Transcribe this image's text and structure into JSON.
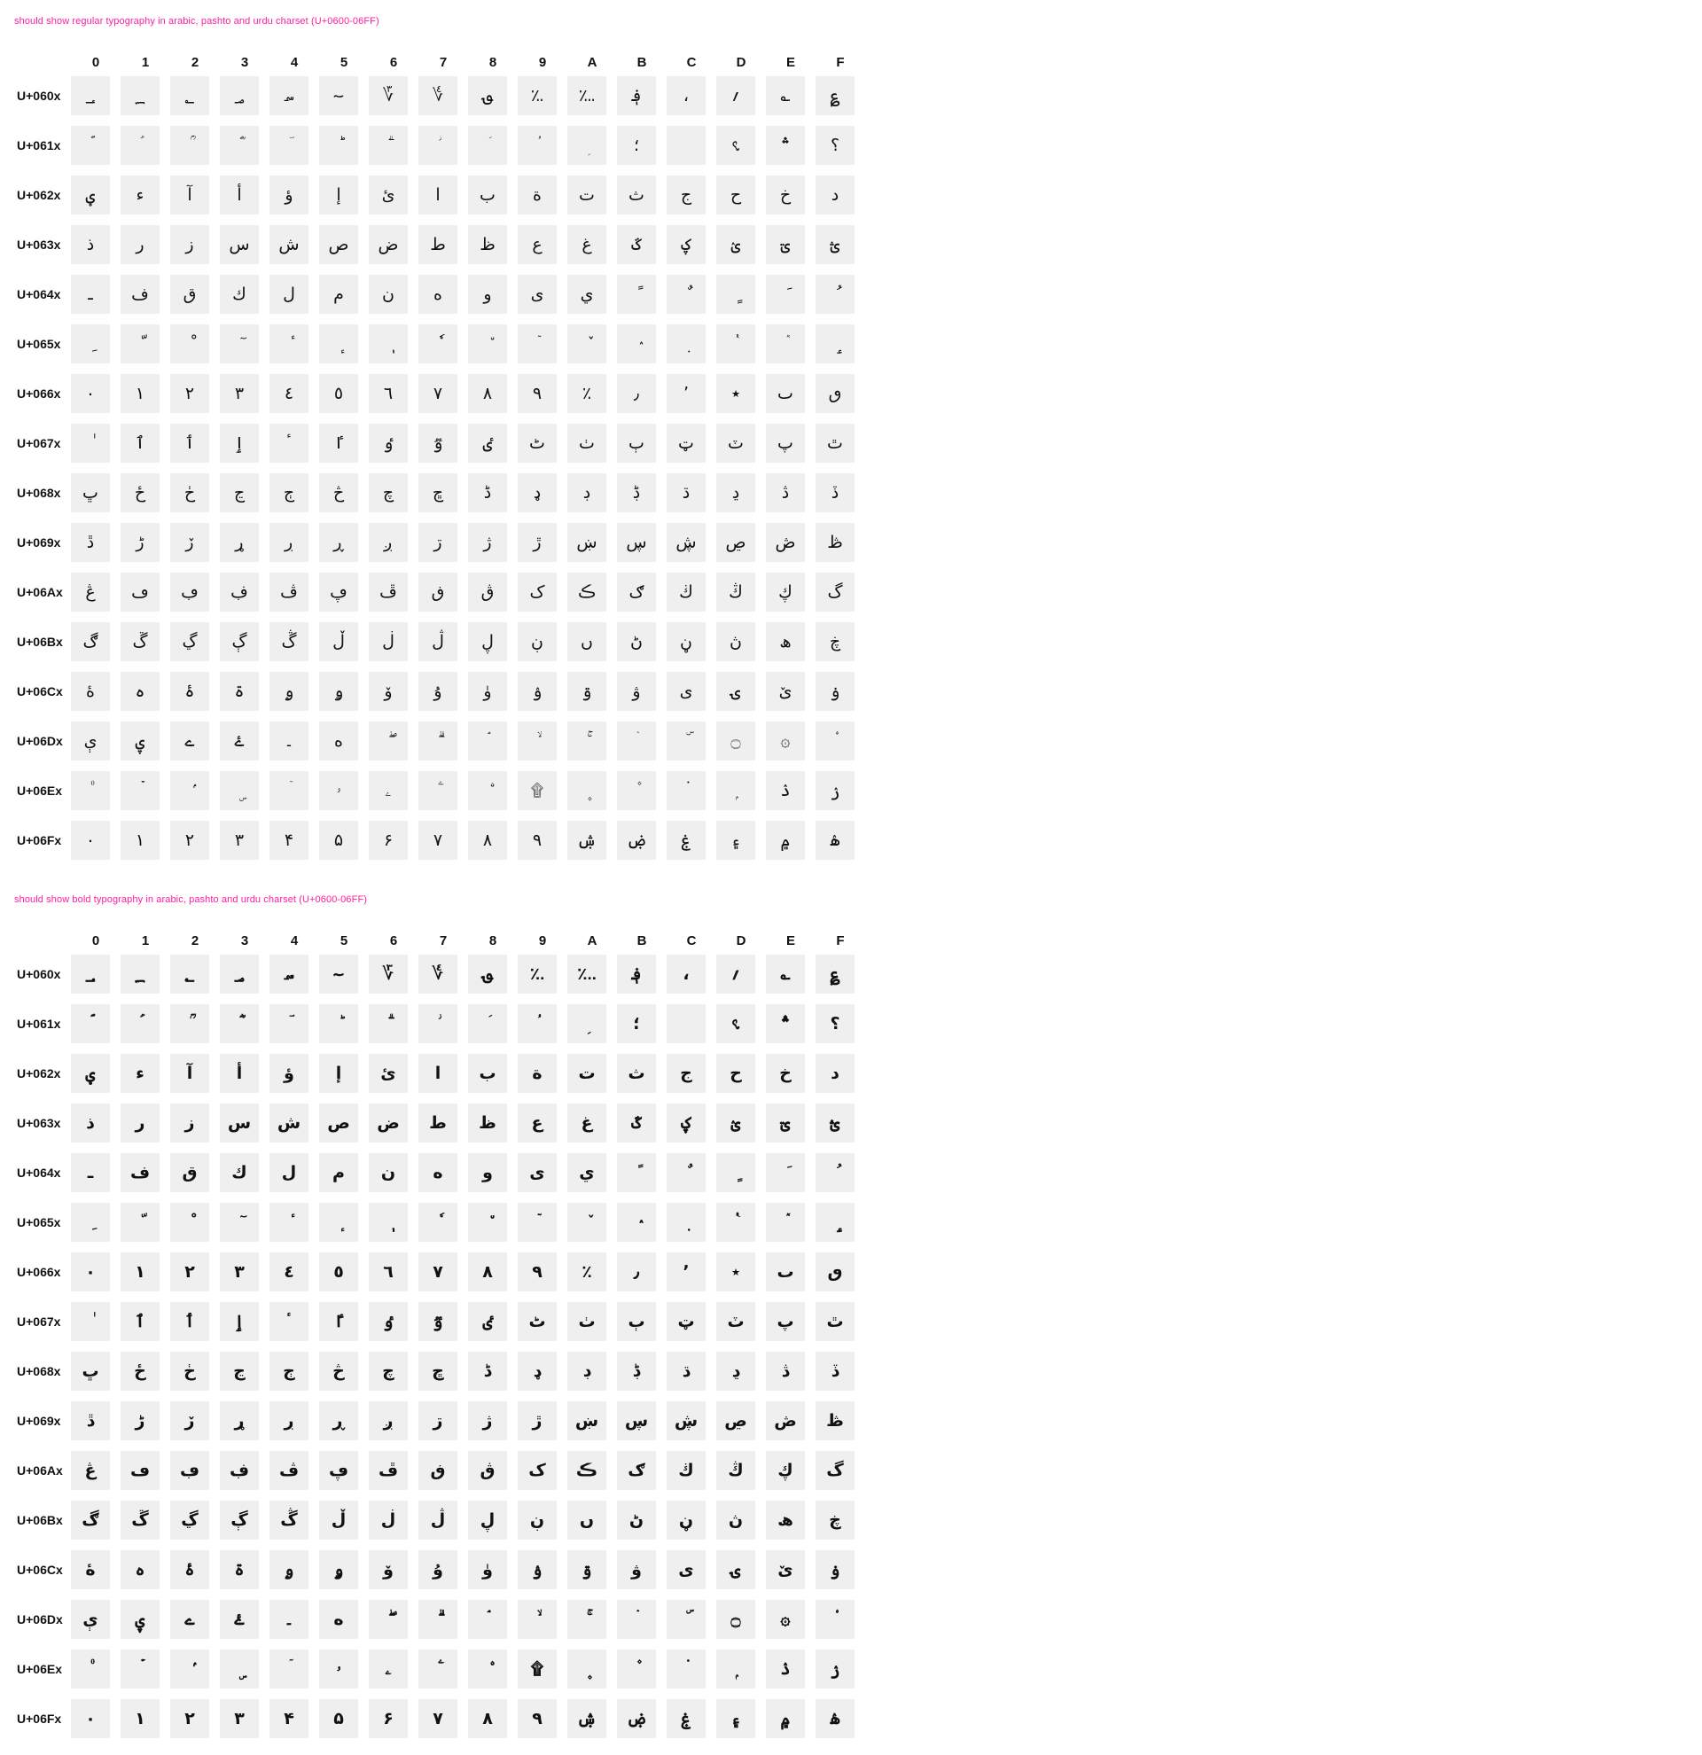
{
  "colors": {
    "title": "#ff1fa0",
    "cell_bg": "#efefef",
    "text": "#111111",
    "background": "#ffffff"
  },
  "column_headers": [
    "0",
    "1",
    "2",
    "3",
    "4",
    "5",
    "6",
    "7",
    "8",
    "9",
    "A",
    "B",
    "C",
    "D",
    "E",
    "F"
  ],
  "sections": [
    {
      "title": "should show regular typography in arabic, pashto and urdu charset (U+0600-06FF)",
      "weight": "regular",
      "rows": [
        {
          "label": "U+060x",
          "chars": [
            "؀",
            "؁",
            "؂",
            "؃",
            "؄",
            "؅",
            "؆",
            "؇",
            "؈",
            "؉",
            "؊",
            "؋",
            "،",
            "؍",
            "؎",
            "؏"
          ]
        },
        {
          "label": "U+061x",
          "chars": [
            "ؐ",
            "ؑ",
            "ؒ",
            "ؓ",
            "ؔ",
            "ؕ",
            "ؖ",
            "ؗ",
            "ؘ",
            "ؙ",
            "ؚ",
            "؛",
            "؜",
            "؝",
            "؞",
            "؟"
          ]
        },
        {
          "label": "U+062x",
          "chars": [
            "ؠ",
            "ء",
            "آ",
            "أ",
            "ؤ",
            "إ",
            "ئ",
            "ا",
            "ب",
            "ة",
            "ت",
            "ث",
            "ج",
            "ح",
            "خ",
            "د"
          ]
        },
        {
          "label": "U+063x",
          "chars": [
            "ذ",
            "ر",
            "ز",
            "س",
            "ش",
            "ص",
            "ض",
            "ط",
            "ظ",
            "ع",
            "غ",
            "ػ",
            "ؼ",
            "ؽ",
            "ؾ",
            "ؿ"
          ]
        },
        {
          "label": "U+064x",
          "chars": [
            "ـ",
            "ف",
            "ق",
            "ك",
            "ل",
            "م",
            "ن",
            "ه",
            "و",
            "ى",
            "ي",
            "ً",
            "ٌ",
            "ٍ",
            "َ",
            "ُ"
          ]
        },
        {
          "label": "U+065x",
          "chars": [
            "ِ",
            "ّ",
            "ْ",
            "ٓ",
            "ٔ",
            "ٕ",
            "ٖ",
            "ٗ",
            "٘",
            "ٙ",
            "ٚ",
            "ٛ",
            "ٜ",
            "ٝ",
            "ٞ",
            "ٟ"
          ]
        },
        {
          "label": "U+066x",
          "chars": [
            "٠",
            "١",
            "٢",
            "٣",
            "٤",
            "٥",
            "٦",
            "٧",
            "٨",
            "٩",
            "٪",
            "٫",
            "٬",
            "٭",
            "ٮ",
            "ٯ"
          ]
        },
        {
          "label": "U+067x",
          "chars": [
            "ٰ",
            "ٱ",
            "ٲ",
            "ٳ",
            "ٴ",
            "ٵ",
            "ٶ",
            "ٷ",
            "ٸ",
            "ٹ",
            "ٺ",
            "ٻ",
            "ټ",
            "ٽ",
            "پ",
            "ٿ"
          ]
        },
        {
          "label": "U+068x",
          "chars": [
            "ڀ",
            "ځ",
            "ڂ",
            "ڃ",
            "ڄ",
            "څ",
            "چ",
            "ڇ",
            "ڈ",
            "ډ",
            "ڊ",
            "ڋ",
            "ڌ",
            "ڍ",
            "ڎ",
            "ڏ"
          ]
        },
        {
          "label": "U+069x",
          "chars": [
            "ڐ",
            "ڑ",
            "ڒ",
            "ړ",
            "ڔ",
            "ڕ",
            "ږ",
            "ڗ",
            "ژ",
            "ڙ",
            "ښ",
            "ڛ",
            "ڜ",
            "ڝ",
            "ڞ",
            "ڟ"
          ]
        },
        {
          "label": "U+06Ax",
          "chars": [
            "ڠ",
            "ڡ",
            "ڢ",
            "ڣ",
            "ڤ",
            "ڥ",
            "ڦ",
            "ڧ",
            "ڨ",
            "ک",
            "ڪ",
            "ګ",
            "ڬ",
            "ڭ",
            "ڮ",
            "گ"
          ]
        },
        {
          "label": "U+06Bx",
          "chars": [
            "ڰ",
            "ڱ",
            "ڲ",
            "ڳ",
            "ڴ",
            "ڵ",
            "ڶ",
            "ڷ",
            "ڸ",
            "ڹ",
            "ں",
            "ڻ",
            "ڼ",
            "ڽ",
            "ھ",
            "ڿ"
          ]
        },
        {
          "label": "U+06Cx",
          "chars": [
            "ۀ",
            "ہ",
            "ۂ",
            "ۃ",
            "ۄ",
            "ۅ",
            "ۆ",
            "ۇ",
            "ۈ",
            "ۉ",
            "ۊ",
            "ۋ",
            "ی",
            "ۍ",
            "ێ",
            "ۏ"
          ]
        },
        {
          "label": "U+06Dx",
          "chars": [
            "ې",
            "ۑ",
            "ے",
            "ۓ",
            "۔",
            "ە",
            "ۖ",
            "ۗ",
            "ۘ",
            "ۙ",
            "ۚ",
            "ۛ",
            "ۜ",
            "۝",
            "۞",
            "۟"
          ]
        },
        {
          "label": "U+06Ex",
          "chars": [
            "۠",
            "ۡ",
            "ۢ",
            "ۣ",
            "ۤ",
            "ۥ",
            "ۦ",
            "ۧ",
            "ۨ",
            "۩",
            "۪",
            "۫",
            "۬",
            "ۭ",
            "ۮ",
            "ۯ"
          ]
        },
        {
          "label": "U+06Fx",
          "chars": [
            "۰",
            "۱",
            "۲",
            "۳",
            "۴",
            "۵",
            "۶",
            "۷",
            "۸",
            "۹",
            "ۺ",
            "ۻ",
            "ۼ",
            "۽",
            "۾",
            "ۿ"
          ]
        }
      ]
    },
    {
      "title": "should show bold typography in arabic, pashto and urdu charset (U+0600-06FF)",
      "weight": "bold",
      "rows": [
        {
          "label": "U+060x",
          "chars": [
            "؀",
            "؁",
            "؂",
            "؃",
            "؄",
            "؅",
            "؆",
            "؇",
            "؈",
            "؉",
            "؊",
            "؋",
            "،",
            "؍",
            "؎",
            "؏"
          ]
        },
        {
          "label": "U+061x",
          "chars": [
            "ؐ",
            "ؑ",
            "ؒ",
            "ؓ",
            "ؔ",
            "ؕ",
            "ؖ",
            "ؗ",
            "ؘ",
            "ؙ",
            "ؚ",
            "؛",
            "؜",
            "؝",
            "؞",
            "؟"
          ]
        },
        {
          "label": "U+062x",
          "chars": [
            "ؠ",
            "ء",
            "آ",
            "أ",
            "ؤ",
            "إ",
            "ئ",
            "ا",
            "ب",
            "ة",
            "ت",
            "ث",
            "ج",
            "ح",
            "خ",
            "د"
          ]
        },
        {
          "label": "U+063x",
          "chars": [
            "ذ",
            "ر",
            "ز",
            "س",
            "ش",
            "ص",
            "ض",
            "ط",
            "ظ",
            "ع",
            "غ",
            "ػ",
            "ؼ",
            "ؽ",
            "ؾ",
            "ؿ"
          ]
        },
        {
          "label": "U+064x",
          "chars": [
            "ـ",
            "ف",
            "ق",
            "ك",
            "ل",
            "م",
            "ن",
            "ه",
            "و",
            "ى",
            "ي",
            "ً",
            "ٌ",
            "ٍ",
            "َ",
            "ُ"
          ]
        },
        {
          "label": "U+065x",
          "chars": [
            "ِ",
            "ّ",
            "ْ",
            "ٓ",
            "ٔ",
            "ٕ",
            "ٖ",
            "ٗ",
            "٘",
            "ٙ",
            "ٚ",
            "ٛ",
            "ٜ",
            "ٝ",
            "ٞ",
            "ٟ"
          ]
        },
        {
          "label": "U+066x",
          "chars": [
            "٠",
            "١",
            "٢",
            "٣",
            "٤",
            "٥",
            "٦",
            "٧",
            "٨",
            "٩",
            "٪",
            "٫",
            "٬",
            "٭",
            "ٮ",
            "ٯ"
          ]
        },
        {
          "label": "U+067x",
          "chars": [
            "ٰ",
            "ٱ",
            "ٲ",
            "ٳ",
            "ٴ",
            "ٵ",
            "ٶ",
            "ٷ",
            "ٸ",
            "ٹ",
            "ٺ",
            "ٻ",
            "ټ",
            "ٽ",
            "پ",
            "ٿ"
          ]
        },
        {
          "label": "U+068x",
          "chars": [
            "ڀ",
            "ځ",
            "ڂ",
            "ڃ",
            "ڄ",
            "څ",
            "چ",
            "ڇ",
            "ڈ",
            "ډ",
            "ڊ",
            "ڋ",
            "ڌ",
            "ڍ",
            "ڎ",
            "ڏ"
          ]
        },
        {
          "label": "U+069x",
          "chars": [
            "ڐ",
            "ڑ",
            "ڒ",
            "ړ",
            "ڔ",
            "ڕ",
            "ږ",
            "ڗ",
            "ژ",
            "ڙ",
            "ښ",
            "ڛ",
            "ڜ",
            "ڝ",
            "ڞ",
            "ڟ"
          ]
        },
        {
          "label": "U+06Ax",
          "chars": [
            "ڠ",
            "ڡ",
            "ڢ",
            "ڣ",
            "ڤ",
            "ڥ",
            "ڦ",
            "ڧ",
            "ڨ",
            "ک",
            "ڪ",
            "ګ",
            "ڬ",
            "ڭ",
            "ڮ",
            "گ"
          ]
        },
        {
          "label": "U+06Bx",
          "chars": [
            "ڰ",
            "ڱ",
            "ڲ",
            "ڳ",
            "ڴ",
            "ڵ",
            "ڶ",
            "ڷ",
            "ڸ",
            "ڹ",
            "ں",
            "ڻ",
            "ڼ",
            "ڽ",
            "ھ",
            "ڿ"
          ]
        },
        {
          "label": "U+06Cx",
          "chars": [
            "ۀ",
            "ہ",
            "ۂ",
            "ۃ",
            "ۄ",
            "ۅ",
            "ۆ",
            "ۇ",
            "ۈ",
            "ۉ",
            "ۊ",
            "ۋ",
            "ی",
            "ۍ",
            "ێ",
            "ۏ"
          ]
        },
        {
          "label": "U+06Dx",
          "chars": [
            "ې",
            "ۑ",
            "ے",
            "ۓ",
            "۔",
            "ە",
            "ۖ",
            "ۗ",
            "ۘ",
            "ۙ",
            "ۚ",
            "ۛ",
            "ۜ",
            "۝",
            "۞",
            "۟"
          ]
        },
        {
          "label": "U+06Ex",
          "chars": [
            "۠",
            "ۡ",
            "ۢ",
            "ۣ",
            "ۤ",
            "ۥ",
            "ۦ",
            "ۧ",
            "ۨ",
            "۩",
            "۪",
            "۫",
            "۬",
            "ۭ",
            "ۮ",
            "ۯ"
          ]
        },
        {
          "label": "U+06Fx",
          "chars": [
            "۰",
            "۱",
            "۲",
            "۳",
            "۴",
            "۵",
            "۶",
            "۷",
            "۸",
            "۹",
            "ۺ",
            "ۻ",
            "ۼ",
            "۽",
            "۾",
            "ۿ"
          ]
        }
      ]
    }
  ]
}
